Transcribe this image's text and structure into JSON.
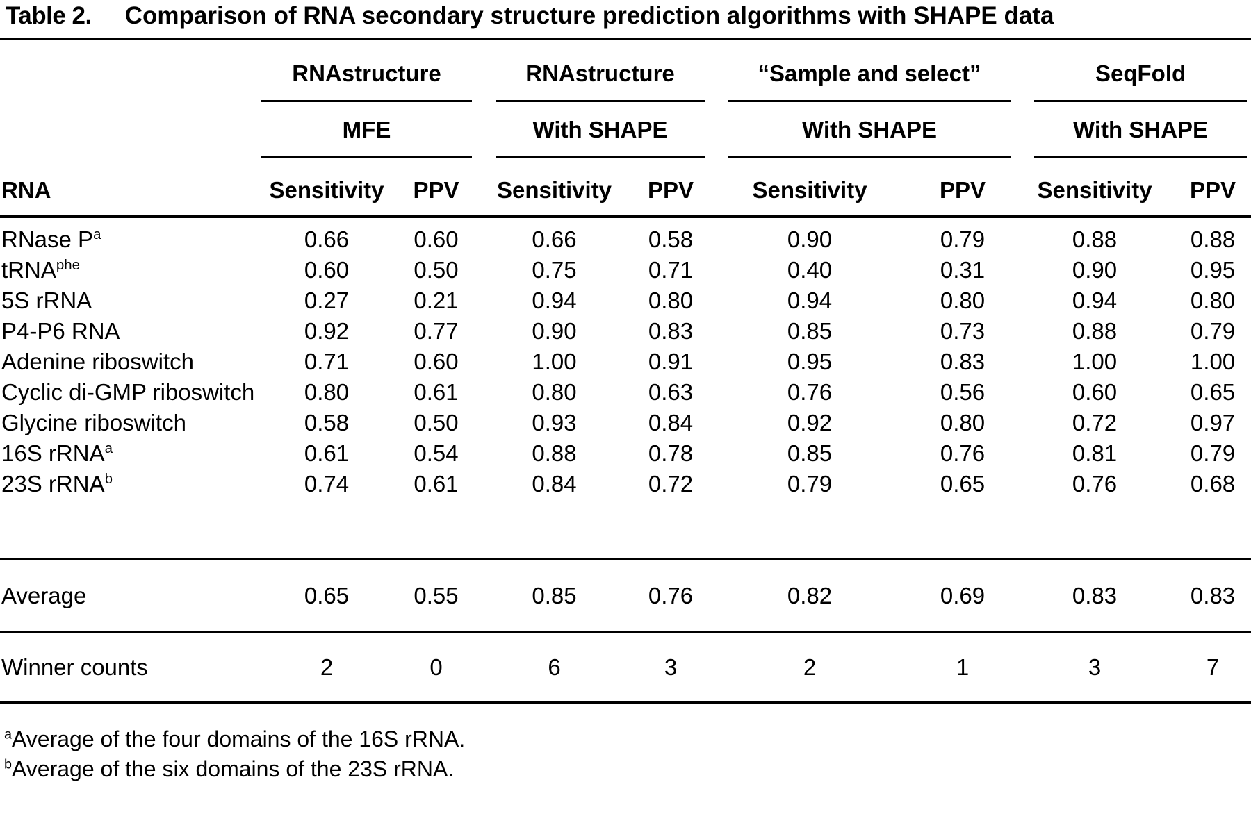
{
  "colors": {
    "background": "#ffffff",
    "text": "#000000"
  },
  "title": {
    "label": "Table 2.",
    "text": "Comparison of RNA secondary structure prediction algorithms with SHAPE data"
  },
  "header": {
    "row_label": "RNA",
    "groups": [
      {
        "name": "RNAstructure",
        "sub": "MFE"
      },
      {
        "name": "RNAstructure",
        "sub": "With SHAPE"
      },
      {
        "name": "“Sample and select”",
        "sub": "With SHAPE"
      },
      {
        "name": "SeqFold",
        "sub": "With SHAPE"
      }
    ],
    "metric_labels": [
      "Sensitivity",
      "PPV"
    ]
  },
  "rows": [
    {
      "label": "RNase P",
      "sup": "a",
      "values": [
        "0.66",
        "0.60",
        "0.66",
        "0.58",
        "0.90",
        "0.79",
        "0.88",
        "0.88"
      ]
    },
    {
      "label": "tRNA",
      "sup": "phe",
      "values": [
        "0.60",
        "0.50",
        "0.75",
        "0.71",
        "0.40",
        "0.31",
        "0.90",
        "0.95"
      ]
    },
    {
      "label": "5S rRNA",
      "sup": "",
      "values": [
        "0.27",
        "0.21",
        "0.94",
        "0.80",
        "0.94",
        "0.80",
        "0.94",
        "0.80"
      ]
    },
    {
      "label": "P4-P6 RNA",
      "sup": "",
      "values": [
        "0.92",
        "0.77",
        "0.90",
        "0.83",
        "0.85",
        "0.73",
        "0.88",
        "0.79"
      ]
    },
    {
      "label": "Adenine riboswitch",
      "sup": "",
      "values": [
        "0.71",
        "0.60",
        "1.00",
        "0.91",
        "0.95",
        "0.83",
        "1.00",
        "1.00"
      ]
    },
    {
      "label": "Cyclic di-GMP riboswitch",
      "sup": "",
      "values": [
        "0.80",
        "0.61",
        "0.80",
        "0.63",
        "0.76",
        "0.56",
        "0.60",
        "0.65"
      ]
    },
    {
      "label": "Glycine riboswitch",
      "sup": "",
      "values": [
        "0.58",
        "0.50",
        "0.93",
        "0.84",
        "0.92",
        "0.80",
        "0.72",
        "0.97"
      ]
    },
    {
      "label": "16S rRNA",
      "sup": "a",
      "values": [
        "0.61",
        "0.54",
        "0.88",
        "0.78",
        "0.85",
        "0.76",
        "0.81",
        "0.79"
      ]
    },
    {
      "label": "23S rRNA",
      "sup": "b",
      "values": [
        "0.74",
        "0.61",
        "0.84",
        "0.72",
        "0.79",
        "0.65",
        "0.76",
        "0.68"
      ]
    }
  ],
  "summary": {
    "average": {
      "label": "Average",
      "values": [
        "0.65",
        "0.55",
        "0.85",
        "0.76",
        "0.82",
        "0.69",
        "0.83",
        "0.83"
      ]
    },
    "winner_counts": {
      "label": "Winner counts",
      "values": [
        "2",
        "0",
        "6",
        "3",
        "2",
        "1",
        "3",
        "7"
      ]
    }
  },
  "footnotes": [
    {
      "marker": "a",
      "text": "Average of the four domains of the 16S rRNA."
    },
    {
      "marker": "b",
      "text": "Average of the six domains of the 23S rRNA."
    }
  ]
}
